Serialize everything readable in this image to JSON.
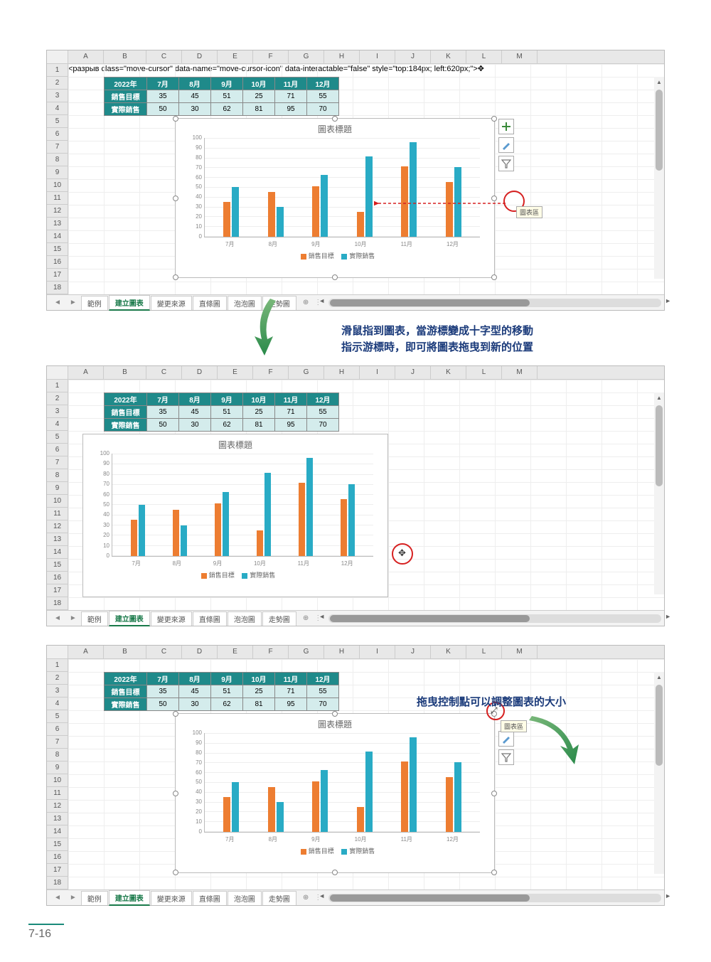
{
  "page_number": "7-16",
  "caption1_line1": "滑鼠指到圖表，當游標變成十字型的移動",
  "caption1_line2": "指示游標時，即可將圖表拖曳到新的位置",
  "caption2": "拖曳控制點可以調整圖表的大小",
  "tooltip_text": "圖表區",
  "columns": [
    "A",
    "B",
    "C",
    "D",
    "E",
    "F",
    "G",
    "H",
    "I",
    "J",
    "K",
    "L",
    "M"
  ],
  "rows": [
    "1",
    "2",
    "3",
    "4",
    "5",
    "6",
    "7",
    "8",
    "9",
    "10",
    "11",
    "12",
    "13",
    "14",
    "15",
    "16",
    "17",
    "18"
  ],
  "table": {
    "year": "2022年",
    "months": [
      "7月",
      "8月",
      "9月",
      "10月",
      "11月",
      "12月"
    ],
    "row1_label": "銷售目標",
    "row1": [
      "35",
      "45",
      "51",
      "25",
      "71",
      "55"
    ],
    "row2_label": "實際銷售",
    "row2": [
      "50",
      "30",
      "62",
      "81",
      "95",
      "70"
    ]
  },
  "chart": {
    "title": "圖表標題",
    "y_ticks": [
      "0",
      "10",
      "20",
      "30",
      "40",
      "50",
      "60",
      "70",
      "80",
      "90",
      "100"
    ],
    "x_labels": [
      "7月",
      "8月",
      "9月",
      "10月",
      "11月",
      "12月"
    ],
    "series1_name": "銷售目標",
    "series2_name": "實際銷售",
    "series1_color": "#ed7d31",
    "series2_color": "#29abc5",
    "series1": [
      35,
      45,
      51,
      25,
      71,
      55
    ],
    "series2": [
      50,
      30,
      62,
      81,
      95,
      70
    ],
    "ymax": 100
  },
  "sheet_tabs": [
    "範例",
    "建立圖表",
    "變更來源",
    "直條圖",
    "泡泡圖",
    "走勢圖"
  ],
  "active_tab_index": 1,
  "side_icons": [
    "plus-icon",
    "brush-icon",
    "funnel-icon"
  ]
}
